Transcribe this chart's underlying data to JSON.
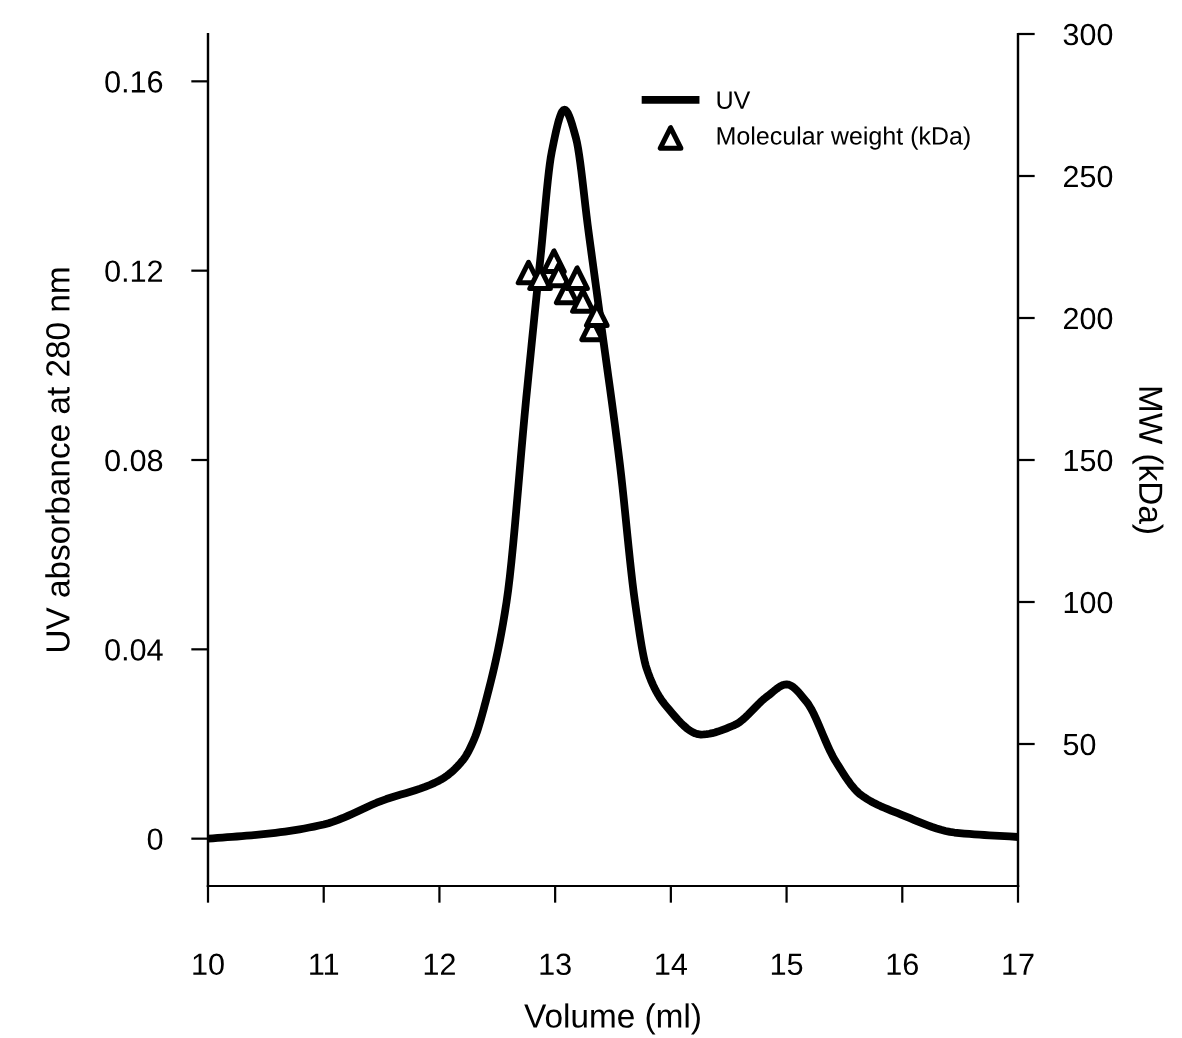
{
  "chart_data": {
    "type": "line",
    "xlabel": "Volume (ml)",
    "ylabel": "UV absorbance at 280 nm",
    "y2label": "MW (kDa)",
    "xlim": [
      10,
      17
    ],
    "xticks": [
      10,
      11,
      12,
      13,
      14,
      15,
      16,
      17
    ],
    "ylim": [
      -0.01,
      0.17
    ],
    "yticks": [
      0,
      0.04,
      0.08,
      0.12,
      0.16
    ],
    "y2lim": [
      0,
      300
    ],
    "y2ticks": [
      50,
      100,
      150,
      200,
      250,
      300
    ],
    "grid": false,
    "legend": "top right",
    "series": [
      {
        "name": "UV",
        "color": "#000000",
        "marker": "none",
        "line_style": "solid",
        "x": [
          10,
          10.5,
          11,
          11.5,
          12,
          12.2,
          12.3,
          12.4,
          12.58,
          12.75,
          12.87,
          12.97,
          13.08,
          13.18,
          13.29,
          13.39,
          13.56,
          13.69,
          13.79,
          13.96,
          14.26,
          14.55,
          14.83,
          15.0,
          15.17,
          15.42,
          15.64,
          15.99,
          16.45,
          16.97
        ],
        "values": [
          0,
          0.001,
          0.003,
          0.008,
          0.0123,
          0.0165,
          0.021,
          0.029,
          0.05,
          0.093,
          0.122,
          0.145,
          0.154,
          0.148,
          0.128,
          0.11,
          0.079,
          0.05,
          0.036,
          0.028,
          0.022,
          0.024,
          0.03,
          0.0326,
          0.029,
          0.0165,
          0.0093,
          0.0051,
          0.0013,
          0.0004
        ]
      },
      {
        "name": "Molecular weight (kDa)",
        "type": "scatter",
        "axis": "y2",
        "color": "#000000",
        "marker": "triangle",
        "x": [
          12.77,
          12.87,
          12.99,
          13.03,
          13.1,
          13.19,
          13.24,
          13.32,
          13.36
        ],
        "values": [
          216,
          214,
          220,
          215,
          209,
          214,
          206,
          196,
          201
        ]
      }
    ]
  }
}
